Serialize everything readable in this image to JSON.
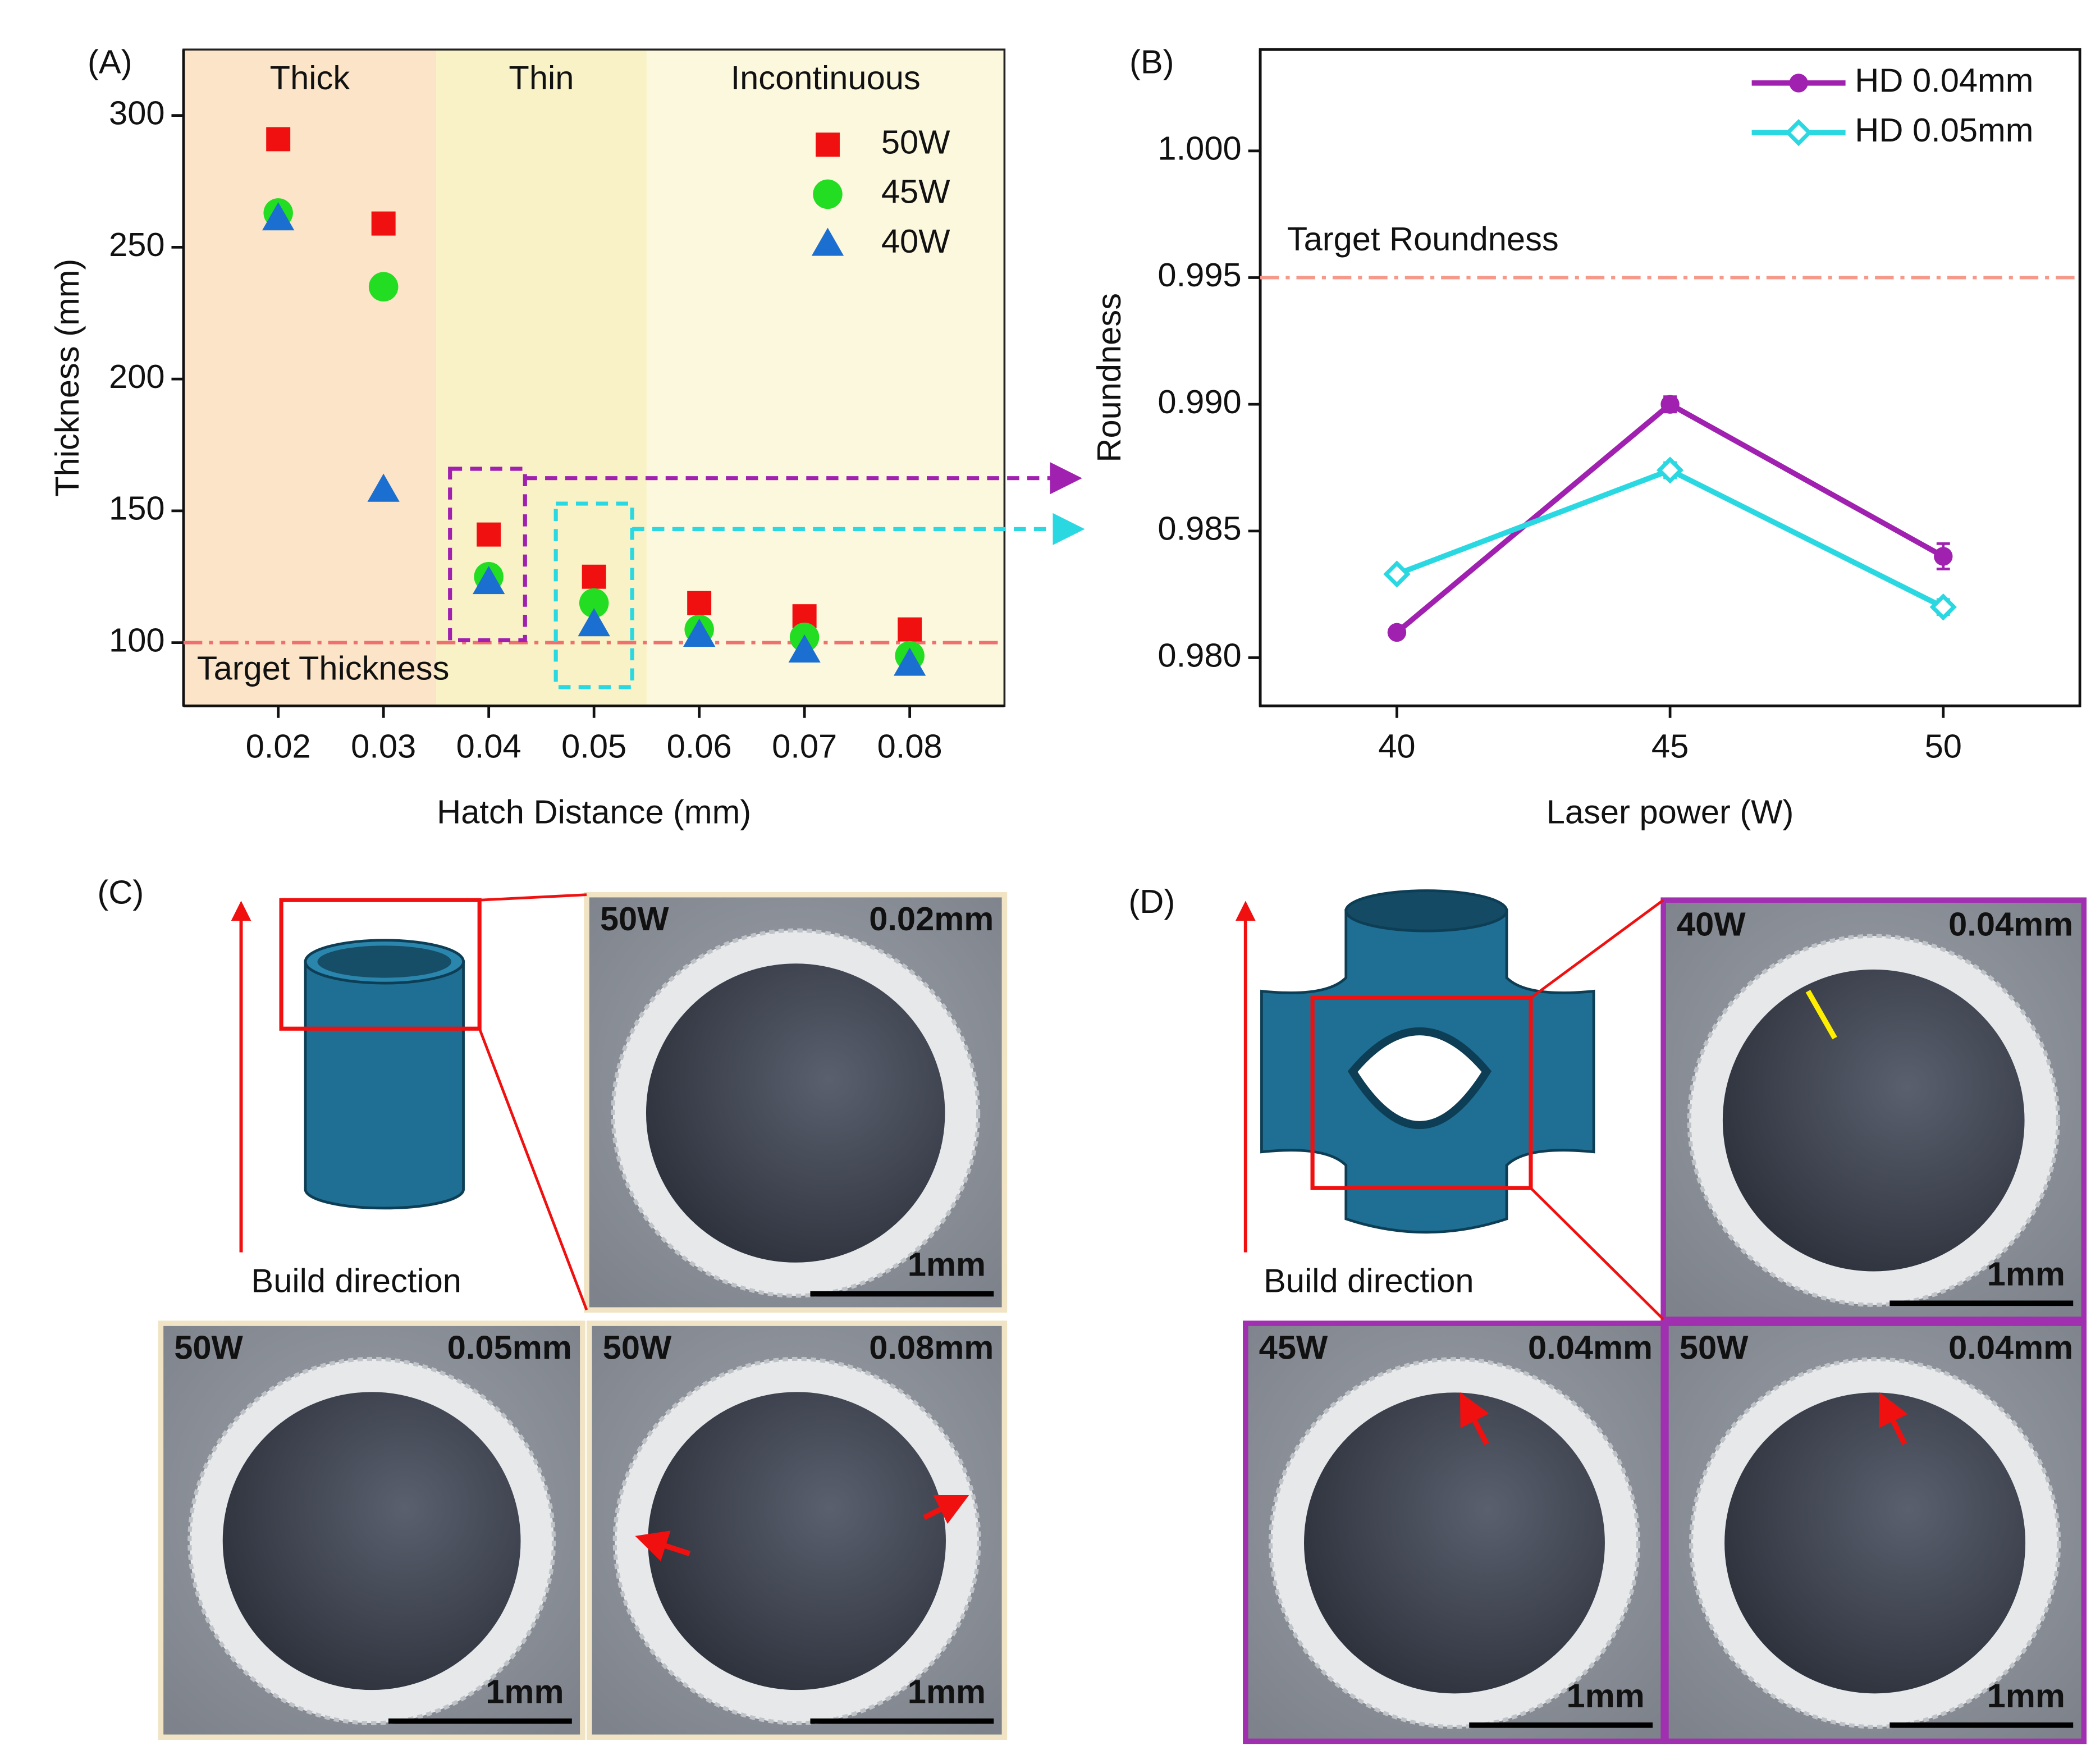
{
  "chart_data": [
    {
      "type": "scatter",
      "panel_label": "(A)",
      "x_label": "Hatch Distance (mm)",
      "y_label": "Thickness (mm)",
      "x": [
        0.02,
        0.03,
        0.04,
        0.05,
        0.06,
        0.07,
        0.08
      ],
      "series": [
        {
          "name": "50W",
          "color": "#f01010",
          "marker": "square",
          "values": [
            291,
            259,
            141,
            125,
            115,
            110,
            105
          ]
        },
        {
          "name": "45W",
          "color": "#22dd22",
          "marker": "circle",
          "values": [
            263,
            235,
            125,
            115,
            105,
            102,
            95
          ]
        },
        {
          "name": "40W",
          "color": "#1a6fd0",
          "marker": "triangle",
          "values": [
            261,
            158,
            123,
            107,
            103,
            97,
            92
          ]
        }
      ],
      "regions": [
        {
          "label": "Thick",
          "xrange": [
            0.011,
            0.035
          ],
          "color": "#fbe4c8"
        },
        {
          "label": "Thin",
          "xrange": [
            0.035,
            0.055
          ],
          "color": "#f8f2c6"
        },
        {
          "label": "Incontinuous",
          "xrange": [
            0.055,
            0.089
          ],
          "color": "#fcf8de"
        }
      ],
      "target": {
        "label": "Target Thickness",
        "value": 100,
        "color": "#f07070"
      },
      "xlim": [
        0.011,
        0.089
      ],
      "xticks": [
        0.02,
        0.03,
        0.04,
        0.05,
        0.06,
        0.07,
        0.08
      ],
      "ylim": [
        76,
        325
      ],
      "yticks": [
        100,
        150,
        200,
        250,
        300
      ],
      "legend": "upper right"
    },
    {
      "type": "line",
      "panel_label": "(B)",
      "x_label": "Laser power (W)",
      "y_label": "Roundness",
      "x": [
        40,
        45,
        50
      ],
      "series": [
        {
          "name": "HD 0.04mm",
          "color": "#a020b0",
          "marker": "circle",
          "filled": true,
          "values": [
            0.981,
            0.99,
            0.984
          ],
          "errors": [
            0.0001,
            0.0003,
            0.0005
          ]
        },
        {
          "name": "HD 0.05mm",
          "color": "#2ad8e2",
          "marker": "diamond",
          "filled": false,
          "values": [
            0.9833,
            0.9874,
            0.982
          ],
          "errors": [
            0.0002,
            0.0003,
            0.0003
          ]
        }
      ],
      "target": {
        "label": "Target Roundness",
        "value": 0.995,
        "color": "#f59a8a"
      },
      "xlim": [
        37.5,
        52.5
      ],
      "xticks": [
        40,
        45,
        50
      ],
      "ylim": [
        0.9781,
        1.004
      ],
      "yticks": [
        {
          "value": 0.98,
          "label": "0.980"
        },
        0.985,
        {
          "value": 0.99,
          "label": "0.990"
        },
        0.995,
        {
          "value": 1,
          "label": "1.000"
        }
      ],
      "legend": "upper right"
    }
  ],
  "micrographs": [
    {
      "panel_label": "(C)",
      "caption": "Build direction",
      "frame": "#f0e4c4",
      "images": [
        {
          "power": "50W",
          "hd": "0.02mm",
          "scale": "1mm"
        },
        {
          "power": "50W",
          "hd": "0.05mm",
          "scale": "1mm"
        },
        {
          "power": "50W",
          "hd": "0.08mm",
          "scale": "1mm"
        }
      ]
    },
    {
      "panel_label": "(D)",
      "caption": "Build direction",
      "frame": "#a030b0",
      "images": [
        {
          "power": "40W",
          "hd": "0.04mm",
          "scale": "1mm"
        },
        {
          "power": "45W",
          "hd": "0.04mm",
          "scale": "1mm"
        },
        {
          "power": "50W",
          "hd": "0.04mm",
          "scale": "1mm"
        }
      ]
    }
  ]
}
